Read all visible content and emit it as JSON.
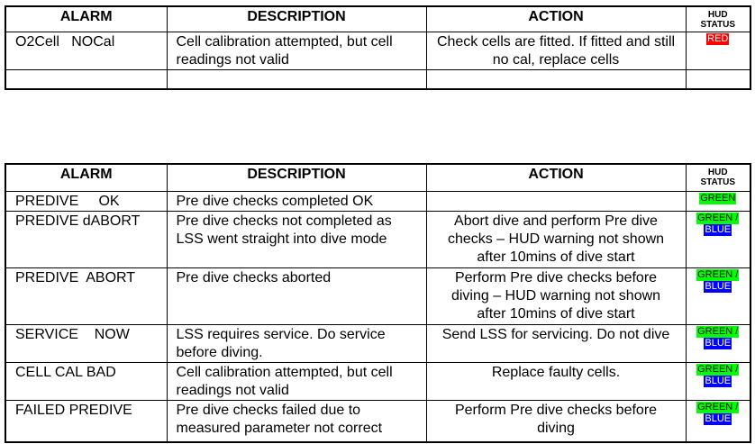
{
  "headers": {
    "alarm": "ALARM",
    "description": "DESCRIPTION",
    "action": "ACTION",
    "hud_line1": "HUD",
    "hud_line2": "STATUS"
  },
  "colors": {
    "red": "#ff0000",
    "green": "#00ff00",
    "blue": "#0000ff"
  },
  "table1": {
    "rows": [
      {
        "alarm": "O2Cell   NOCal",
        "description": "Cell calibration attempted, but cell readings not valid",
        "action": "Check cells are fitted. If fitted and still no cal, replace cells",
        "hud": [
          "RED"
        ]
      }
    ]
  },
  "table2": {
    "rows": [
      {
        "alarm": "PREDIVE     OK",
        "description": "Pre dive checks completed OK",
        "action": "",
        "hud": [
          "GREEN"
        ]
      },
      {
        "alarm": "PREDIVE dABORT",
        "description": "Pre dive checks not completed as LSS went straight into dive mode",
        "action": "Abort dive and perform Pre dive checks – HUD warning not shown after 10mins of dive start",
        "hud": [
          "GREEN /",
          "BLUE"
        ]
      },
      {
        "alarm": "PREDIVE  ABORT",
        "description": "Pre dive checks aborted",
        "action": "Perform Pre dive checks before diving – HUD warning not shown after 10mins of dive start",
        "hud": [
          "GREEN /",
          "BLUE"
        ]
      },
      {
        "alarm": "SERVICE    NOW",
        "description": "LSS requires service. Do service before diving.",
        "action": "Send LSS for servicing. Do not dive",
        "hud": [
          "GREEN /",
          "BLUE"
        ]
      },
      {
        "alarm": "CELL CAL BAD",
        "description": "Cell calibration attempted, but cell readings not valid",
        "action": "Replace faulty cells.",
        "hud": [
          "GREEN /",
          "BLUE"
        ]
      },
      {
        "alarm": "FAILED PREDIVE",
        "description": "Pre dive checks failed due to measured parameter not correct",
        "action": "Perform Pre dive checks before diving",
        "hud": [
          "GREEN /",
          "BLUE"
        ]
      }
    ]
  }
}
